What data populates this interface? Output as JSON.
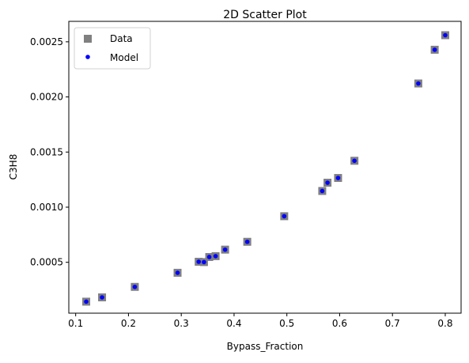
{
  "chart_data": {
    "type": "scatter",
    "title": "2D Scatter Plot",
    "xlabel": "Bypass_Fraction",
    "ylabel": "C3H8",
    "xlim": [
      0.087,
      0.83
    ],
    "ylim": [
      3.86e-05,
      0.0026855
    ],
    "x_ticks": [
      0.1,
      0.2,
      0.3,
      0.4,
      0.5,
      0.6,
      0.7,
      0.8
    ],
    "x_tick_labels": [
      "0.1",
      "0.2",
      "0.3",
      "0.4",
      "0.5",
      "0.6",
      "0.7",
      "0.8"
    ],
    "y_ticks": [
      0.0005,
      0.001,
      0.0015,
      0.002,
      0.0025
    ],
    "y_tick_labels": [
      "0.0005",
      "0.0010",
      "0.0015",
      "0.0020",
      "0.0025"
    ],
    "grid": false,
    "legend_position": "top-left",
    "series": [
      {
        "name": "Data",
        "marker": "square",
        "color": "#808080",
        "x": [
          0.12,
          0.15,
          0.212,
          0.293,
          0.333,
          0.343,
          0.353,
          0.365,
          0.383,
          0.425,
          0.495,
          0.567,
          0.577,
          0.597,
          0.628,
          0.749,
          0.78,
          0.8
        ],
        "y": [
          0.000143,
          0.000182,
          0.000277,
          0.000405,
          0.000505,
          0.000502,
          0.000548,
          0.000556,
          0.000615,
          0.000686,
          0.000918,
          0.001147,
          0.001222,
          0.001265,
          0.001421,
          0.002122,
          0.002428,
          0.00256
        ]
      },
      {
        "name": "Model",
        "marker": "circle",
        "color": "#0000ff",
        "x": [
          0.12,
          0.15,
          0.212,
          0.293,
          0.333,
          0.343,
          0.353,
          0.365,
          0.383,
          0.425,
          0.495,
          0.567,
          0.577,
          0.597,
          0.628,
          0.749,
          0.78,
          0.8
        ],
        "y": [
          0.000143,
          0.000182,
          0.000277,
          0.000405,
          0.000505,
          0.000502,
          0.000548,
          0.000556,
          0.000615,
          0.000686,
          0.000918,
          0.001147,
          0.001222,
          0.001265,
          0.001421,
          0.002122,
          0.002428,
          0.00256
        ]
      }
    ]
  }
}
